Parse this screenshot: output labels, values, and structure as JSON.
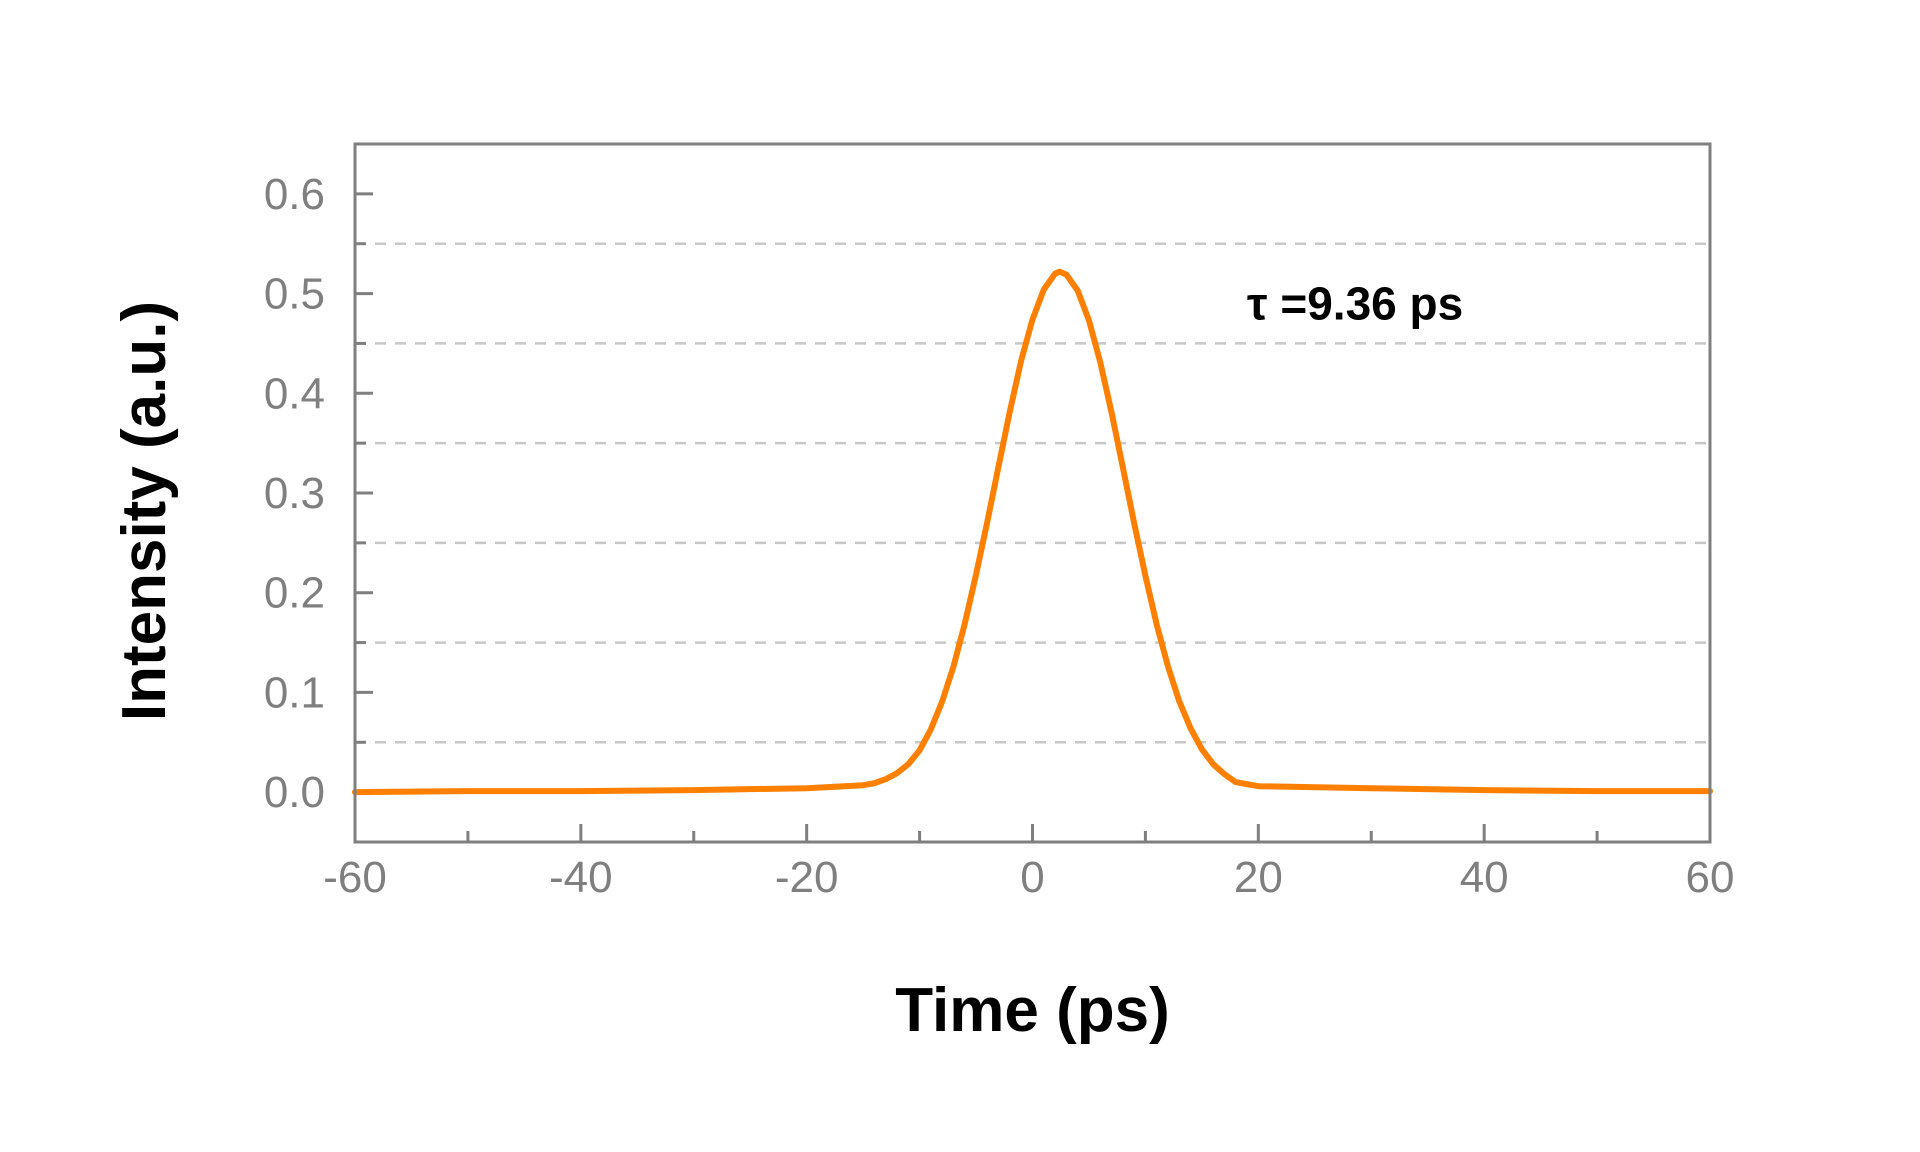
{
  "chart_data": {
    "type": "line",
    "title": "",
    "xlabel": "Time (ps)",
    "ylabel": "Intensity (a.u.)",
    "xlim": [
      -60,
      60
    ],
    "ylim": [
      -0.05,
      0.65
    ],
    "x_ticks": [
      -60,
      -40,
      -20,
      0,
      20,
      40,
      60
    ],
    "x_tick_labels": [
      "-60",
      "-40",
      "-20",
      "0",
      "20",
      "40",
      "60"
    ],
    "x_minor_ticks": [
      -50,
      -30,
      -10,
      10,
      30,
      50
    ],
    "y_ticks": [
      0.0,
      0.1,
      0.2,
      0.3,
      0.4,
      0.5,
      0.6
    ],
    "y_tick_labels": [
      "0.0",
      "0.1",
      "0.2",
      "0.3",
      "0.4",
      "0.5",
      "0.6"
    ],
    "y_minor_ticks": [
      -0.05,
      0.05,
      0.15,
      0.25,
      0.35,
      0.45,
      0.55
    ],
    "grid": {
      "horizontal_dashed": true,
      "at": [
        0.05,
        0.15,
        0.25,
        0.35,
        0.45,
        0.55
      ]
    },
    "legend": "none",
    "series": [
      {
        "color": "#ff8000",
        "x": [
          -60,
          -50,
          -40,
          -30,
          -20,
          -15,
          -14,
          -13,
          -12,
          -11,
          -10,
          -9,
          -8,
          -7,
          -6,
          -5,
          -4,
          -3,
          -2,
          -1,
          0,
          1,
          2,
          2.4,
          3,
          4,
          5,
          6,
          7,
          8,
          9,
          10,
          11,
          12,
          13,
          14,
          15,
          16,
          17,
          18,
          20,
          30,
          40,
          50,
          60
        ],
        "y": [
          0.0,
          0.001,
          0.001,
          0.002,
          0.004,
          0.007,
          0.009,
          0.013,
          0.019,
          0.028,
          0.042,
          0.063,
          0.091,
          0.126,
          0.169,
          0.218,
          0.271,
          0.327,
          0.382,
          0.433,
          0.474,
          0.504,
          0.52,
          0.522,
          0.519,
          0.503,
          0.473,
          0.431,
          0.381,
          0.326,
          0.27,
          0.217,
          0.168,
          0.126,
          0.091,
          0.064,
          0.043,
          0.028,
          0.018,
          0.01,
          0.006,
          0.004,
          0.002,
          0.001,
          0.001
        ]
      }
    ],
    "annotations": [
      {
        "text": "τ =9.36 ps",
        "x": 19.0,
        "y": 0.49
      }
    ]
  },
  "annotation_text": "τ =9.36 ps"
}
